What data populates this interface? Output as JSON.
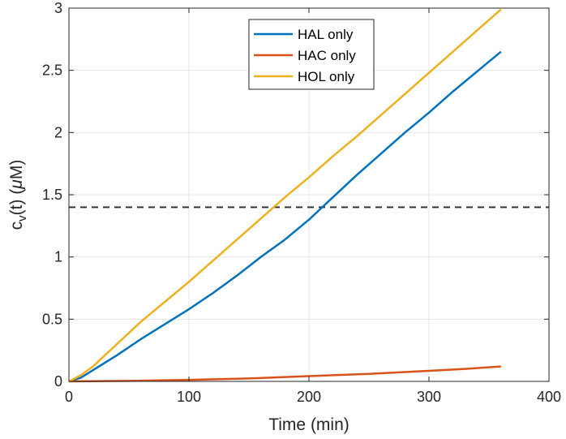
{
  "chart_data": {
    "type": "line",
    "xlabel": "Time (min)",
    "ylabel": "c_v(t) (μM)",
    "ylabel_parts": {
      "main": "c",
      "sub": "v",
      "rest": "(t) (",
      "mu": "μ",
      "tail": "M)"
    },
    "xlim": [
      0,
      400
    ],
    "ylim": [
      0,
      3
    ],
    "xticks": [
      "0",
      "100",
      "200",
      "300",
      "400"
    ],
    "yticks": [
      "0",
      "0.5",
      "1",
      "1.5",
      "2",
      "2.5",
      "3"
    ],
    "grid": true,
    "legend_position": "top-center",
    "threshold": {
      "y": 1.4,
      "style": "dashed",
      "color": "#333333"
    },
    "series": [
      {
        "name": "HAL only",
        "color": "#0072BD",
        "points": [
          [
            0,
            0
          ],
          [
            10,
            0.03
          ],
          [
            20,
            0.09
          ],
          [
            40,
            0.21
          ],
          [
            60,
            0.34
          ],
          [
            80,
            0.46
          ],
          [
            100,
            0.58
          ],
          [
            120,
            0.71
          ],
          [
            140,
            0.85
          ],
          [
            160,
            1.0
          ],
          [
            180,
            1.14
          ],
          [
            200,
            1.3
          ],
          [
            220,
            1.48
          ],
          [
            240,
            1.66
          ],
          [
            260,
            1.83
          ],
          [
            280,
            2.0
          ],
          [
            300,
            2.16
          ],
          [
            320,
            2.33
          ],
          [
            340,
            2.49
          ],
          [
            360,
            2.65
          ]
        ]
      },
      {
        "name": "HAC only",
        "color": "#D95319",
        "points": [
          [
            0,
            0
          ],
          [
            50,
            0.004
          ],
          [
            100,
            0.012
          ],
          [
            150,
            0.024
          ],
          [
            200,
            0.042
          ],
          [
            250,
            0.06
          ],
          [
            300,
            0.085
          ],
          [
            330,
            0.1
          ],
          [
            360,
            0.12
          ]
        ]
      },
      {
        "name": "HOL only",
        "color": "#EDB120",
        "points": [
          [
            0,
            0
          ],
          [
            10,
            0.05
          ],
          [
            20,
            0.12
          ],
          [
            40,
            0.3
          ],
          [
            60,
            0.48
          ],
          [
            80,
            0.64
          ],
          [
            100,
            0.8
          ],
          [
            120,
            0.97
          ],
          [
            140,
            1.14
          ],
          [
            160,
            1.31
          ],
          [
            180,
            1.48
          ],
          [
            200,
            1.64
          ],
          [
            220,
            1.81
          ],
          [
            240,
            1.97
          ],
          [
            260,
            2.14
          ],
          [
            280,
            2.31
          ],
          [
            300,
            2.48
          ],
          [
            320,
            2.65
          ],
          [
            340,
            2.82
          ],
          [
            360,
            2.99
          ]
        ]
      }
    ]
  }
}
